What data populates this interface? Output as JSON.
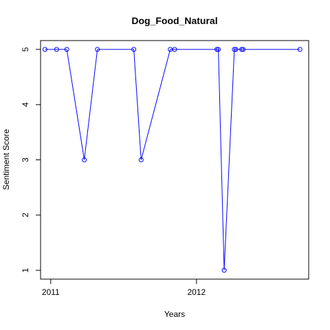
{
  "chart_data": {
    "type": "line",
    "title": "Dog_Food_Natural",
    "xlabel": "Years",
    "ylabel": "Sentiment Score",
    "x_ticks": [
      {
        "label": "2011",
        "value": 2011.0
      },
      {
        "label": "2012",
        "value": 2012.0
      }
    ],
    "y_ticks": [
      1,
      2,
      3,
      4,
      5
    ],
    "xlim": [
      2010.93,
      2012.77
    ],
    "ylim": [
      0.84,
      5.16
    ],
    "grid": false,
    "legend": "none",
    "series": [
      {
        "color": "#0000ff",
        "marker": "open-circle",
        "points": [
          {
            "x": 2010.96,
            "y": 5
          },
          {
            "x": 2011.04,
            "y": 5
          },
          {
            "x": 2011.11,
            "y": 5
          },
          {
            "x": 2011.23,
            "y": 3
          },
          {
            "x": 2011.32,
            "y": 5
          },
          {
            "x": 2011.57,
            "y": 5
          },
          {
            "x": 2011.62,
            "y": 3
          },
          {
            "x": 2011.82,
            "y": 5
          },
          {
            "x": 2011.85,
            "y": 5
          },
          {
            "x": 2012.14,
            "y": 5
          },
          {
            "x": 2012.15,
            "y": 5
          },
          {
            "x": 2012.19,
            "y": 1
          },
          {
            "x": 2012.26,
            "y": 5
          },
          {
            "x": 2012.27,
            "y": 5
          },
          {
            "x": 2012.31,
            "y": 5
          },
          {
            "x": 2012.32,
            "y": 5
          },
          {
            "x": 2012.71,
            "y": 5
          }
        ]
      }
    ]
  }
}
